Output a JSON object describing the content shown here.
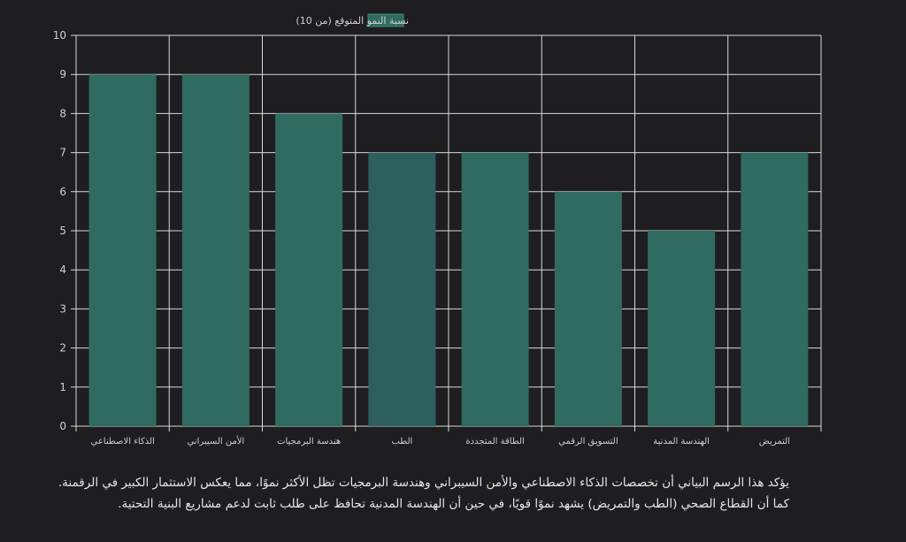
{
  "chart_data": {
    "type": "bar",
    "legend_label": "نسبة النمو المتوقع (من 10)",
    "legend_position": "top-center",
    "categories": [
      "الذكاء الاصطناعي",
      "الأمن السيبراني",
      "هندسة البرمجيات",
      "الطب",
      "الطاقة المتجددة",
      "التسويق الرقمي",
      "الهندسة المدنية",
      "التمريض"
    ],
    "values": [
      9,
      9,
      8,
      7,
      7,
      6,
      5,
      7
    ],
    "ylim": [
      0,
      10
    ],
    "yticks": [
      "0",
      "1",
      "2",
      "3",
      "4",
      "5",
      "6",
      "7",
      "8",
      "9",
      "10"
    ],
    "grid": true,
    "bar_color": "#2f6b60",
    "bar_color_highlight": "#2e5f5f",
    "grid_color": "#d8d8d8",
    "text_color": "#cfcfcf"
  },
  "caption": {
    "line1": "يؤكد هذا الرسم البياني أن تخصصات الذكاء الاصطناعي والأمن السيبراني وهندسة البرمجيات تظل الأكثر نموًا، مما يعكس الاستثمار الكبير في الرقمنة.",
    "line2": "كما أن القطاع الصحي (الطب والتمريض) يشهد نموًا قويًا، في حين أن الهندسة المدنية تحافظ على طلب ثابت لدعم مشاريع البنية التحتية."
  }
}
